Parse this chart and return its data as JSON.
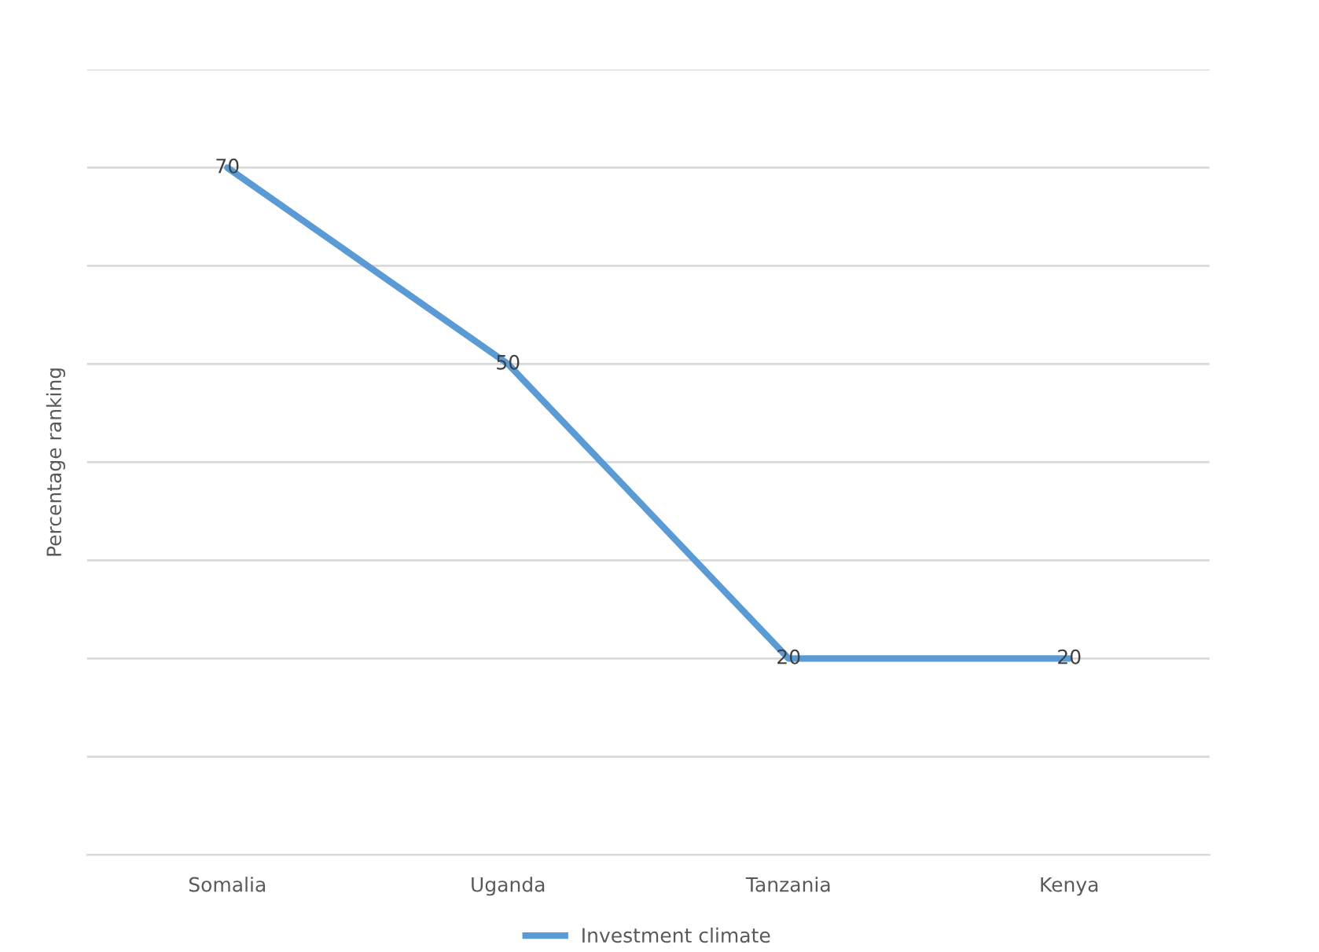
{
  "chart_data": {
    "type": "line",
    "ylabel": "Percentage ranking",
    "categories": [
      "Somalia",
      "Uganda",
      "Tanzania",
      "Kenya"
    ],
    "series": [
      {
        "name": "Investment climate",
        "color": "#5b9bd5",
        "values": [
          70,
          50,
          20,
          20
        ]
      }
    ],
    "ylim": [
      0,
      80
    ],
    "yticks": [
      {
        "value": 0,
        "label": null
      },
      {
        "value": 10,
        "label": null
      },
      {
        "value": 20,
        "label": null
      },
      {
        "value": 30,
        "label": null
      },
      {
        "value": 40,
        "label": null
      },
      {
        "value": 50,
        "label": null
      },
      {
        "value": 60,
        "label": null
      },
      {
        "value": 70,
        "label": null
      },
      {
        "value": 80,
        "label": null
      }
    ],
    "tick_labels": "x",
    "grid": "y",
    "legend": "bottom",
    "data_labels": true,
    "marker": "none",
    "line_style": "solid"
  }
}
